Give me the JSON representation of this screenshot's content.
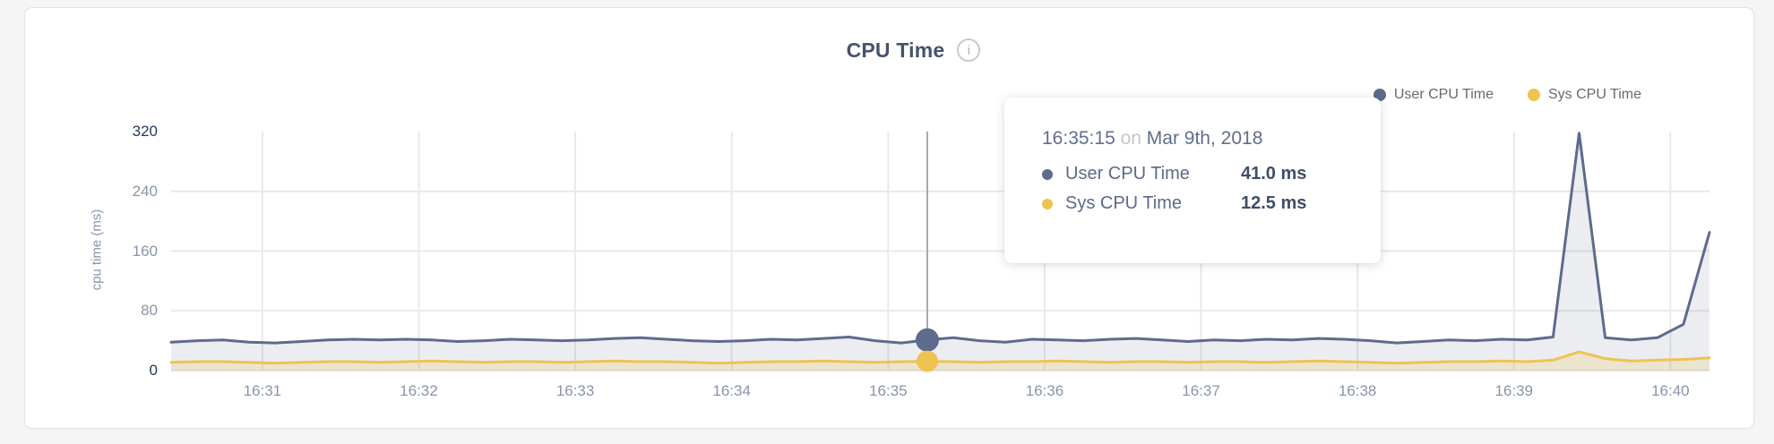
{
  "header": {
    "title": "CPU Time",
    "info_glyph": "i"
  },
  "legend": {
    "items": [
      {
        "label": "User CPU Time",
        "color": "#5d6b8c"
      },
      {
        "label": "Sys CPU Time",
        "color": "#eec352"
      }
    ]
  },
  "tooltip": {
    "time": "16:35:15",
    "preposition": "on",
    "date": "Mar 9th, 2018",
    "rows": [
      {
        "label": "User CPU Time",
        "value": "41.0 ms",
        "color": "#5d6b8c"
      },
      {
        "label": "Sys CPU Time",
        "value": "12.5 ms",
        "color": "#eec352"
      }
    ]
  },
  "chart_data": {
    "type": "line",
    "title": "CPU Time",
    "xlabel": "",
    "ylabel": "cpu time (ms)",
    "ylim": [
      0,
      320
    ],
    "grid": true,
    "legend_position": "top-right",
    "x_is_seconds_after_16_30": true,
    "x_domain": [
      25,
      615
    ],
    "y_ticks": [
      {
        "v": 0,
        "label": "0",
        "emphasis": true,
        "line": true
      },
      {
        "v": 80,
        "label": "80",
        "emphasis": false,
        "line": true
      },
      {
        "v": 160,
        "label": "160",
        "emphasis": false,
        "line": true
      },
      {
        "v": 240,
        "label": "240",
        "emphasis": false,
        "line": true
      },
      {
        "v": 320,
        "label": "320",
        "emphasis": true,
        "line": false
      }
    ],
    "x_ticks": [
      {
        "t": 60,
        "label": "16:31"
      },
      {
        "t": 120,
        "label": "16:32"
      },
      {
        "t": 180,
        "label": "16:33"
      },
      {
        "t": 240,
        "label": "16:34"
      },
      {
        "t": 300,
        "label": "16:35"
      },
      {
        "t": 360,
        "label": "16:36"
      },
      {
        "t": 420,
        "label": "16:37"
      },
      {
        "t": 480,
        "label": "16:38"
      },
      {
        "t": 540,
        "label": "16:39"
      },
      {
        "t": 600,
        "label": "16:40"
      }
    ],
    "hover": {
      "t": 315,
      "time": "16:35:15",
      "date": "Mar 9th, 2018",
      "user_ms": 41.0,
      "sys_ms": 12.5
    },
    "series": [
      {
        "name": "User CPU Time",
        "color": "#5d6b8c",
        "fill": "rgba(93,107,140,0.12)",
        "points": [
          [
            25,
            38
          ],
          [
            35,
            40
          ],
          [
            45,
            41
          ],
          [
            55,
            38
          ],
          [
            65,
            37
          ],
          [
            75,
            39
          ],
          [
            85,
            41
          ],
          [
            95,
            42
          ],
          [
            105,
            41
          ],
          [
            115,
            42
          ],
          [
            125,
            41
          ],
          [
            135,
            39
          ],
          [
            145,
            40
          ],
          [
            155,
            42
          ],
          [
            165,
            41
          ],
          [
            175,
            40
          ],
          [
            185,
            41
          ],
          [
            195,
            43
          ],
          [
            205,
            44
          ],
          [
            215,
            42
          ],
          [
            225,
            40
          ],
          [
            235,
            39
          ],
          [
            245,
            40
          ],
          [
            255,
            42
          ],
          [
            265,
            41
          ],
          [
            275,
            43
          ],
          [
            285,
            45
          ],
          [
            295,
            40
          ],
          [
            305,
            37
          ],
          [
            315,
            41
          ],
          [
            325,
            44
          ],
          [
            335,
            40
          ],
          [
            345,
            38
          ],
          [
            355,
            42
          ],
          [
            365,
            41
          ],
          [
            375,
            40
          ],
          [
            385,
            42
          ],
          [
            395,
            43
          ],
          [
            405,
            41
          ],
          [
            415,
            39
          ],
          [
            425,
            41
          ],
          [
            435,
            40
          ],
          [
            445,
            42
          ],
          [
            455,
            41
          ],
          [
            465,
            43
          ],
          [
            475,
            42
          ],
          [
            485,
            40
          ],
          [
            495,
            37
          ],
          [
            505,
            39
          ],
          [
            515,
            41
          ],
          [
            525,
            40
          ],
          [
            535,
            42
          ],
          [
            545,
            41
          ],
          [
            555,
            45
          ],
          [
            565,
            318
          ],
          [
            575,
            44
          ],
          [
            585,
            41
          ],
          [
            595,
            44
          ],
          [
            605,
            62
          ],
          [
            615,
            185
          ]
        ]
      },
      {
        "name": "Sys CPU Time",
        "color": "#eec352",
        "fill": "rgba(238,195,82,0.22)",
        "points": [
          [
            25,
            11
          ],
          [
            35,
            12
          ],
          [
            45,
            12
          ],
          [
            55,
            11
          ],
          [
            65,
            10
          ],
          [
            75,
            11
          ],
          [
            85,
            12
          ],
          [
            95,
            12
          ],
          [
            105,
            11
          ],
          [
            115,
            12
          ],
          [
            125,
            13
          ],
          [
            135,
            12
          ],
          [
            145,
            11
          ],
          [
            155,
            12
          ],
          [
            165,
            12
          ],
          [
            175,
            11
          ],
          [
            185,
            12
          ],
          [
            195,
            13
          ],
          [
            205,
            12
          ],
          [
            215,
            12
          ],
          [
            225,
            11
          ],
          [
            235,
            10
          ],
          [
            245,
            11
          ],
          [
            255,
            12
          ],
          [
            265,
            12
          ],
          [
            275,
            13
          ],
          [
            285,
            12
          ],
          [
            295,
            11
          ],
          [
            305,
            12
          ],
          [
            315,
            12.5
          ],
          [
            325,
            12
          ],
          [
            335,
            11
          ],
          [
            345,
            12
          ],
          [
            355,
            12
          ],
          [
            365,
            13
          ],
          [
            375,
            12
          ],
          [
            385,
            11
          ],
          [
            395,
            12
          ],
          [
            405,
            12
          ],
          [
            415,
            11
          ],
          [
            425,
            12
          ],
          [
            435,
            12
          ],
          [
            445,
            11
          ],
          [
            455,
            12
          ],
          [
            465,
            13
          ],
          [
            475,
            12
          ],
          [
            485,
            11
          ],
          [
            495,
            10
          ],
          [
            505,
            11
          ],
          [
            515,
            12
          ],
          [
            525,
            12
          ],
          [
            535,
            13
          ],
          [
            545,
            12
          ],
          [
            555,
            14
          ],
          [
            565,
            25
          ],
          [
            575,
            16
          ],
          [
            585,
            13
          ],
          [
            595,
            14
          ],
          [
            605,
            15
          ],
          [
            615,
            17
          ]
        ]
      }
    ],
    "colors": {
      "grid": "#e9e9ea",
      "crosshair": "#a8a8a8",
      "tick_gray": "#8795a9",
      "tick_dark": "#24385c"
    }
  }
}
